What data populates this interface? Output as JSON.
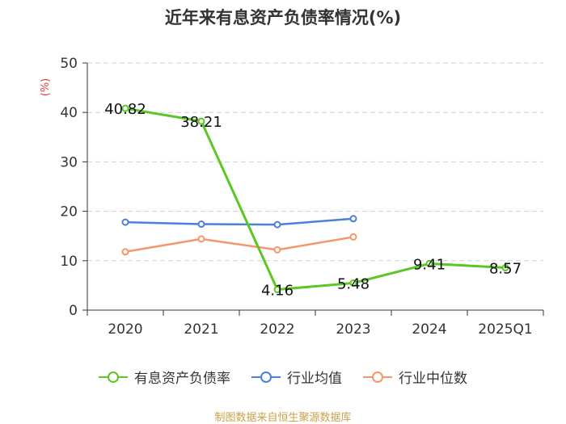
{
  "chart_data": {
    "type": "line",
    "title": "近年来有息资产负债率情况(%)",
    "ylabel": "(%)",
    "xlabel": "",
    "ylim": [
      0,
      50
    ],
    "yticks": [
      0,
      10,
      20,
      30,
      40,
      50
    ],
    "categories": [
      "2020",
      "2021",
      "2022",
      "2023",
      "2024",
      "2025Q1"
    ],
    "series": [
      {
        "name": "有息资产负债率",
        "color": "#5ac724",
        "values": [
          40.82,
          38.21,
          4.16,
          5.48,
          9.41,
          8.57
        ],
        "labels": [
          "40.82",
          "38.21",
          "4.16",
          "5.48",
          "9.41",
          "8.57"
        ]
      },
      {
        "name": "行业均值",
        "color": "#4a7fdc",
        "values": [
          17.8,
          17.4,
          17.3,
          18.5,
          null,
          null
        ]
      },
      {
        "name": "行业中位数",
        "color": "#f5956a",
        "values": [
          11.8,
          14.4,
          12.2,
          14.8,
          null,
          null
        ]
      }
    ],
    "grid": true,
    "legend": "bottom"
  },
  "source": "制图数据来自恒生聚源数据库"
}
